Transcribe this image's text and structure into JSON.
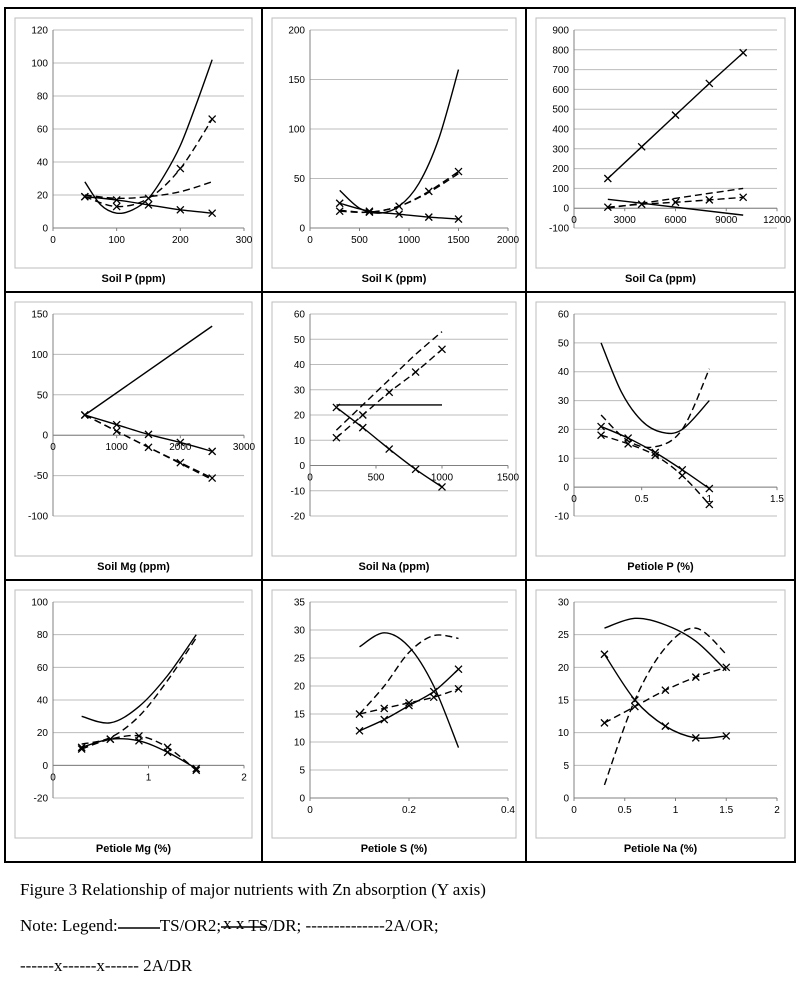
{
  "caption": {
    "title": "Figure 3 Relationship of major nutrients with Zn absorption (Y axis)",
    "note_prefix": "Note: Legend:",
    "legend": [
      {
        "label": "TS/OR2;",
        "style": "solid"
      },
      {
        "label": "TS/DR;",
        "style": "solid-x",
        "marks": "x   x"
      },
      {
        "label": "2A/OR;",
        "style": "dashed",
        "text": "--------------"
      },
      {
        "label": "2A/DR",
        "style": "dashed-x",
        "text": "------x------x------"
      }
    ]
  },
  "chart_data": [
    {
      "type": "line",
      "xlabel": "Soil P (ppm)",
      "ylabel": "",
      "xlim": [
        0,
        300
      ],
      "ylim": [
        0,
        120
      ],
      "xticks": [
        0,
        100,
        200,
        300
      ],
      "yticks": [
        0,
        20,
        40,
        60,
        80,
        100,
        120
      ],
      "xtick_labels": [
        "0",
        "100",
        "200",
        "300"
      ],
      "series": [
        {
          "style": "solid",
          "x": [
            50,
            75,
            100,
            125,
            150,
            175,
            200,
            225,
            250
          ],
          "y": [
            28,
            14,
            9,
            11,
            18,
            32,
            50,
            75,
            102
          ]
        },
        {
          "style": "solid-x",
          "x": [
            50,
            100,
            150,
            200,
            250
          ],
          "y": [
            19,
            17,
            14,
            11,
            9
          ]
        },
        {
          "style": "dashed",
          "x": [
            50,
            100,
            150,
            200,
            250
          ],
          "y": [
            20,
            18,
            19,
            22,
            28
          ]
        },
        {
          "style": "dashed-x",
          "x": [
            50,
            100,
            150,
            200,
            250
          ],
          "y": [
            19,
            13,
            18,
            36,
            66
          ]
        }
      ]
    },
    {
      "type": "line",
      "xlabel": "Soil K (ppm)",
      "ylabel": "",
      "xlim": [
        0,
        2000
      ],
      "ylim": [
        0,
        200
      ],
      "xticks": [
        0,
        500,
        1000,
        1500,
        2000
      ],
      "yticks": [
        0,
        50,
        100,
        150,
        200
      ],
      "xtick_labels": [
        "0",
        "500",
        "1000",
        "1500",
        "2000"
      ],
      "series": [
        {
          "style": "solid",
          "x": [
            300,
            500,
            700,
            900,
            1100,
            1300,
            1500
          ],
          "y": [
            38,
            20,
            15,
            22,
            45,
            90,
            160
          ]
        },
        {
          "style": "solid-x",
          "x": [
            300,
            600,
            900,
            1200,
            1500
          ],
          "y": [
            25,
            17,
            14,
            11,
            9
          ]
        },
        {
          "style": "dashed",
          "x": [
            300,
            600,
            900,
            1200,
            1500
          ],
          "y": [
            18,
            16,
            22,
            36,
            55
          ]
        },
        {
          "style": "dashed-x",
          "x": [
            300,
            600,
            900,
            1200,
            1500
          ],
          "y": [
            17,
            16,
            22,
            37,
            57
          ]
        }
      ]
    },
    {
      "type": "line",
      "xlabel": "Soil Ca (ppm)",
      "ylabel": "",
      "xlim": [
        0,
        12000
      ],
      "ylim": [
        -100,
        900
      ],
      "xticks": [
        0,
        3000,
        6000,
        9000,
        12000
      ],
      "yticks": [
        -100,
        0,
        100,
        200,
        300,
        400,
        500,
        600,
        700,
        800,
        900
      ],
      "xtick_labels": [
        "0",
        "3000",
        "6000",
        "9000",
        "12000"
      ],
      "series": [
        {
          "style": "solid-x",
          "x": [
            2000,
            4000,
            6000,
            8000,
            10000
          ],
          "y": [
            150,
            310,
            470,
            630,
            785
          ]
        },
        {
          "style": "solid",
          "x": [
            2000,
            10000
          ],
          "y": [
            45,
            -35
          ]
        },
        {
          "style": "dashed",
          "x": [
            2000,
            10000
          ],
          "y": [
            0,
            100
          ]
        },
        {
          "style": "dashed-x",
          "x": [
            2000,
            4000,
            6000,
            8000,
            10000
          ],
          "y": [
            5,
            20,
            30,
            42,
            55
          ]
        }
      ]
    },
    {
      "type": "line",
      "xlabel": "Soil Mg (ppm)",
      "ylabel": "",
      "xlim": [
        0,
        3000
      ],
      "ylim": [
        -100,
        150
      ],
      "xticks": [
        0,
        1000,
        2000,
        3000
      ],
      "yticks": [
        -100,
        -50,
        0,
        50,
        100,
        150
      ],
      "xtick_labels": [
        "0",
        "1000",
        "2000",
        "3000"
      ],
      "series": [
        {
          "style": "solid",
          "x": [
            500,
            2500
          ],
          "y": [
            25,
            135
          ]
        },
        {
          "style": "solid-x",
          "x": [
            500,
            1000,
            1500,
            2000,
            2500
          ],
          "y": [
            25,
            13,
            1,
            -9,
            -20
          ]
        },
        {
          "style": "dashed",
          "x": [
            500,
            2500
          ],
          "y": [
            25,
            -55
          ]
        },
        {
          "style": "dashed-x",
          "x": [
            500,
            1000,
            1500,
            2000,
            2500
          ],
          "y": [
            25,
            5,
            -15,
            -34,
            -53
          ]
        }
      ]
    },
    {
      "type": "line",
      "xlabel": "Soil Na (ppm)",
      "ylabel": "",
      "xlim": [
        0,
        1500
      ],
      "ylim": [
        -20,
        60
      ],
      "xticks": [
        0,
        500,
        1000,
        1500
      ],
      "yticks": [
        -20,
        -10,
        0,
        10,
        20,
        30,
        40,
        50,
        60
      ],
      "xtick_labels": [
        "0",
        "500",
        "1000",
        "1500"
      ],
      "series": [
        {
          "style": "solid",
          "x": [
            200,
            1000
          ],
          "y": [
            24,
            24
          ]
        },
        {
          "style": "solid-x",
          "x": [
            200,
            400,
            600,
            800,
            1000
          ],
          "y": [
            23,
            15,
            6.5,
            -1.5,
            -8.5
          ]
        },
        {
          "style": "dashed",
          "x": [
            200,
            400,
            600,
            800,
            1000
          ],
          "y": [
            14,
            24,
            34,
            44,
            53
          ]
        },
        {
          "style": "dashed-x",
          "x": [
            200,
            400,
            600,
            800,
            1000
          ],
          "y": [
            11,
            20,
            29,
            37,
            46
          ]
        }
      ]
    },
    {
      "type": "line",
      "xlabel": "Petiole P (%)",
      "ylabel": "",
      "xlim": [
        0,
        1.5
      ],
      "ylim": [
        -10,
        60
      ],
      "xticks": [
        0,
        0.5,
        1,
        1.5
      ],
      "yticks": [
        -10,
        0,
        10,
        20,
        30,
        40,
        50,
        60
      ],
      "xtick_labels": [
        "0",
        "0.5",
        "1",
        "1.5"
      ],
      "series": [
        {
          "style": "solid",
          "x": [
            0.2,
            0.35,
            0.5,
            0.65,
            0.8,
            1.0
          ],
          "y": [
            50,
            33,
            23,
            19,
            20,
            30
          ]
        },
        {
          "style": "solid-x",
          "x": [
            0.2,
            0.4,
            0.6,
            0.8,
            1.0
          ],
          "y": [
            21,
            17,
            12,
            6,
            -0.5
          ]
        },
        {
          "style": "dashed",
          "x": [
            0.2,
            0.4,
            0.6,
            0.8,
            1.0
          ],
          "y": [
            25,
            16,
            14,
            20,
            41
          ]
        },
        {
          "style": "dashed-x",
          "x": [
            0.2,
            0.4,
            0.6,
            0.8,
            1.0
          ],
          "y": [
            18,
            15,
            11,
            4,
            -6
          ]
        }
      ]
    },
    {
      "type": "line",
      "xlabel": "Petiole Mg (%)",
      "ylabel": "",
      "xlim": [
        0,
        2
      ],
      "ylim": [
        -20,
        100
      ],
      "xticks": [
        0,
        1,
        2
      ],
      "yticks": [
        -20,
        0,
        20,
        40,
        60,
        80,
        100
      ],
      "xtick_labels": [
        "0",
        "1",
        "2"
      ],
      "series": [
        {
          "style": "solid",
          "x": [
            0.3,
            0.6,
            0.9,
            1.2,
            1.5
          ],
          "y": [
            30,
            26,
            36,
            55,
            80
          ]
        },
        {
          "style": "solid-x",
          "x": [
            0.3,
            0.6,
            0.9,
            1.2,
            1.5
          ],
          "y": [
            11,
            16,
            15,
            8,
            -2
          ]
        },
        {
          "style": "dashed",
          "x": [
            0.3,
            0.6,
            0.9,
            1.2,
            1.5
          ],
          "y": [
            13,
            17,
            30,
            52,
            78
          ]
        },
        {
          "style": "dashed-x",
          "x": [
            0.3,
            0.6,
            0.9,
            1.2,
            1.5
          ],
          "y": [
            10,
            16,
            18,
            11,
            -3
          ]
        }
      ]
    },
    {
      "type": "line",
      "xlabel": "Petiole S (%)",
      "ylabel": "",
      "xlim": [
        0,
        0.4
      ],
      "ylim": [
        0,
        35
      ],
      "xticks": [
        0,
        0.2,
        0.4
      ],
      "yticks": [
        0,
        5,
        10,
        15,
        20,
        25,
        30,
        35
      ],
      "xtick_labels": [
        "0",
        "0.2",
        "0.4"
      ],
      "series": [
        {
          "style": "solid",
          "x": [
            0.1,
            0.15,
            0.2,
            0.25,
            0.3
          ],
          "y": [
            27,
            29.5,
            27,
            20,
            9
          ]
        },
        {
          "style": "solid-x",
          "x": [
            0.1,
            0.15,
            0.2,
            0.25,
            0.3
          ],
          "y": [
            12,
            14,
            16.5,
            19,
            23
          ]
        },
        {
          "style": "dashed",
          "x": [
            0.1,
            0.15,
            0.2,
            0.25,
            0.3
          ],
          "y": [
            15,
            20,
            26,
            29,
            28.5
          ]
        },
        {
          "style": "dashed-x",
          "x": [
            0.1,
            0.15,
            0.2,
            0.25,
            0.3
          ],
          "y": [
            15,
            16,
            17,
            18,
            19.5
          ]
        }
      ]
    },
    {
      "type": "line",
      "xlabel": "Petiole Na (%)",
      "ylabel": "",
      "xlim": [
        0,
        2
      ],
      "ylim": [
        0,
        30
      ],
      "xticks": [
        0,
        0.5,
        1,
        1.5,
        2
      ],
      "yticks": [
        0,
        5,
        10,
        15,
        20,
        25,
        30
      ],
      "xtick_labels": [
        "0",
        "0.5",
        "1",
        "1.5",
        "2"
      ],
      "series": [
        {
          "style": "solid",
          "x": [
            0.3,
            0.6,
            0.9,
            1.2,
            1.5
          ],
          "y": [
            26,
            27.5,
            26.5,
            24,
            19.5
          ]
        },
        {
          "style": "solid-x",
          "x": [
            0.3,
            0.6,
            0.9,
            1.2,
            1.5
          ],
          "y": [
            22,
            15,
            11,
            9.2,
            9.5
          ]
        },
        {
          "style": "dashed",
          "x": [
            0.3,
            0.6,
            0.9,
            1.2,
            1.5
          ],
          "y": [
            2,
            15,
            23,
            26,
            22
          ]
        },
        {
          "style": "dashed-x",
          "x": [
            0.3,
            0.6,
            0.9,
            1.2,
            1.5
          ],
          "y": [
            11.5,
            14,
            16.5,
            18.5,
            20
          ]
        }
      ]
    }
  ]
}
